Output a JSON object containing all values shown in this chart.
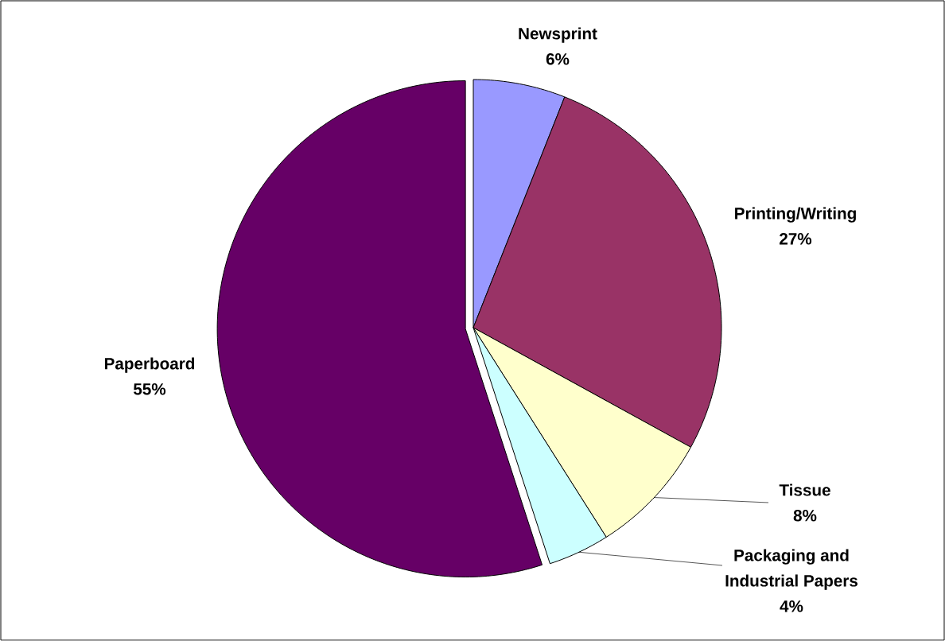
{
  "chart_data": {
    "type": "pie",
    "categories": [
      "Newsprint",
      "Printing/Writing",
      "Tissue",
      "Packaging and Industrial Papers",
      "Paperboard"
    ],
    "values": [
      6,
      27,
      8,
      4,
      55
    ],
    "colors": [
      "#9999ff",
      "#993366",
      "#ffffcc",
      "#ccffff",
      "#660066"
    ],
    "value_labels": [
      "6%",
      "27%",
      "8%",
      "4%",
      "55%"
    ]
  }
}
